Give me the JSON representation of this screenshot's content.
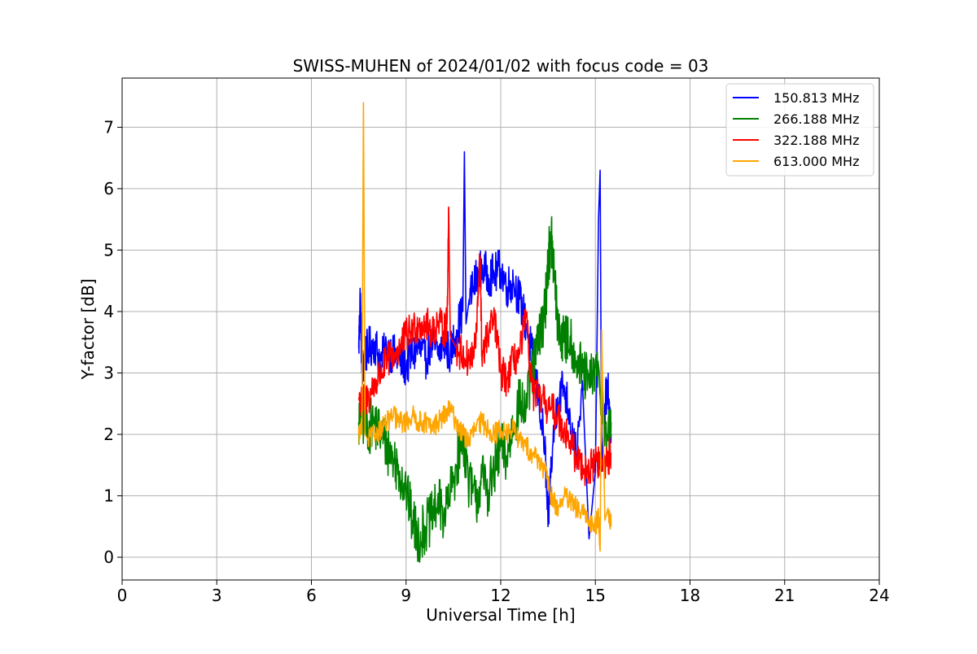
{
  "chart_data": {
    "type": "line",
    "title": "SWISS-MUHEN of 2024/01/02 with focus code = 03",
    "xlabel": "Universal Time [h]",
    "ylabel": "Y-factor [dB]",
    "xlim": [
      0,
      24
    ],
    "ylim": [
      -0.37,
      7.8
    ],
    "xticks": [
      0,
      3,
      6,
      9,
      12,
      15,
      18,
      21,
      24
    ],
    "yticks": [
      0,
      1,
      2,
      3,
      4,
      5,
      6,
      7
    ],
    "grid": true,
    "legend_position": "top-right",
    "series": [
      {
        "name": "150.813 MHz",
        "color": "#0000ff",
        "x": [
          7.5,
          7.55,
          7.6,
          7.7,
          7.8,
          8.0,
          8.2,
          8.4,
          8.6,
          8.8,
          9.0,
          9.2,
          9.4,
          9.6,
          9.8,
          10.0,
          10.2,
          10.4,
          10.6,
          10.8,
          10.85,
          10.9,
          11.0,
          11.2,
          11.4,
          11.6,
          11.8,
          12.0,
          12.2,
          12.4,
          12.6,
          12.8,
          13.0,
          13.2,
          13.4,
          13.5,
          13.6,
          13.8,
          14.0,
          14.2,
          14.4,
          14.6,
          14.8,
          15.0,
          15.1,
          15.15,
          15.2,
          15.3,
          15.4,
          15.5
        ],
        "y": [
          3.4,
          4.3,
          3.0,
          3.3,
          3.4,
          3.5,
          3.2,
          3.4,
          3.3,
          3.2,
          3.1,
          3.3,
          3.4,
          3.2,
          3.5,
          3.3,
          3.5,
          3.3,
          3.7,
          4.0,
          6.6,
          3.8,
          4.2,
          4.5,
          4.7,
          4.6,
          4.6,
          4.7,
          4.4,
          4.5,
          4.2,
          3.8,
          3.3,
          2.6,
          1.8,
          0.5,
          1.5,
          2.6,
          2.8,
          2.3,
          1.6,
          2.7,
          0.3,
          1.4,
          5.5,
          6.3,
          1.4,
          2.5,
          2.7,
          2.0
        ]
      },
      {
        "name": "266.188 MHz",
        "color": "#008000",
        "x": [
          7.5,
          7.6,
          7.8,
          8.0,
          8.2,
          8.4,
          8.6,
          8.8,
          9.0,
          9.2,
          9.4,
          9.6,
          9.8,
          10.0,
          10.2,
          10.4,
          10.6,
          10.8,
          11.0,
          11.2,
          11.4,
          11.6,
          11.8,
          12.0,
          12.2,
          12.4,
          12.6,
          12.8,
          13.0,
          13.2,
          13.4,
          13.5,
          13.6,
          13.7,
          13.8,
          14.0,
          14.2,
          14.4,
          14.6,
          14.8,
          15.0,
          15.2,
          15.4,
          15.5
        ],
        "y": [
          2.2,
          2.3,
          2.1,
          2.2,
          2.0,
          1.8,
          1.6,
          1.4,
          1.1,
          0.6,
          0.3,
          0.5,
          0.6,
          0.9,
          0.7,
          1.0,
          1.5,
          2.0,
          1.2,
          0.9,
          1.3,
          1.1,
          1.4,
          1.8,
          1.6,
          2.2,
          2.5,
          2.4,
          3.0,
          3.5,
          4.0,
          4.8,
          5.2,
          4.6,
          3.8,
          3.5,
          3.6,
          3.2,
          3.0,
          2.8,
          3.1,
          2.6,
          1.9,
          2.2
        ]
      },
      {
        "name": "322.188 MHz",
        "color": "#ff0000",
        "x": [
          7.5,
          7.6,
          7.8,
          8.0,
          8.2,
          8.4,
          8.6,
          8.8,
          9.0,
          9.2,
          9.4,
          9.6,
          9.8,
          10.0,
          10.2,
          10.3,
          10.35,
          10.4,
          10.6,
          10.8,
          11.0,
          11.2,
          11.35,
          11.4,
          11.6,
          11.8,
          12.0,
          12.2,
          12.4,
          12.6,
          12.8,
          13.0,
          13.2,
          13.4,
          13.6,
          13.8,
          14.0,
          14.2,
          14.4,
          14.6,
          14.8,
          15.0,
          15.2,
          15.4,
          15.5
        ],
        "y": [
          2.6,
          2.5,
          2.6,
          2.8,
          3.0,
          3.2,
          3.3,
          3.4,
          3.6,
          3.7,
          3.8,
          3.8,
          3.7,
          3.8,
          3.7,
          3.8,
          5.7,
          3.6,
          3.4,
          3.3,
          3.2,
          3.4,
          4.9,
          3.3,
          3.6,
          3.9,
          3.0,
          2.9,
          3.2,
          3.3,
          3.9,
          2.7,
          2.6,
          2.5,
          2.4,
          2.3,
          2.1,
          1.9,
          1.6,
          1.5,
          1.4,
          1.6,
          1.5,
          1.6,
          1.7
        ]
      },
      {
        "name": "613.000 MHz",
        "color": "#ffa500",
        "x": [
          7.5,
          7.6,
          7.65,
          7.7,
          7.8,
          8.0,
          8.2,
          8.4,
          8.6,
          8.8,
          9.0,
          9.2,
          9.4,
          9.6,
          9.8,
          10.0,
          10.2,
          10.4,
          10.6,
          10.8,
          11.0,
          11.2,
          11.4,
          11.6,
          11.8,
          12.0,
          12.2,
          12.4,
          12.6,
          12.8,
          13.0,
          13.2,
          13.4,
          13.6,
          13.8,
          14.0,
          14.2,
          14.4,
          14.6,
          14.8,
          15.0,
          15.1,
          15.15,
          15.2,
          15.3,
          15.4,
          15.5
        ],
        "y": [
          2.0,
          2.1,
          7.4,
          2.0,
          1.9,
          2.0,
          2.1,
          2.2,
          2.3,
          2.2,
          2.2,
          2.3,
          2.2,
          2.2,
          2.1,
          2.2,
          2.3,
          2.4,
          2.2,
          2.0,
          1.9,
          2.1,
          2.2,
          2.1,
          2.0,
          2.1,
          2.0,
          2.1,
          1.9,
          1.8,
          1.7,
          1.6,
          1.4,
          1.0,
          0.8,
          1.0,
          0.9,
          0.8,
          0.7,
          0.6,
          0.5,
          0.7,
          0.1,
          3.7,
          0.6,
          0.8,
          0.5
        ]
      }
    ]
  }
}
